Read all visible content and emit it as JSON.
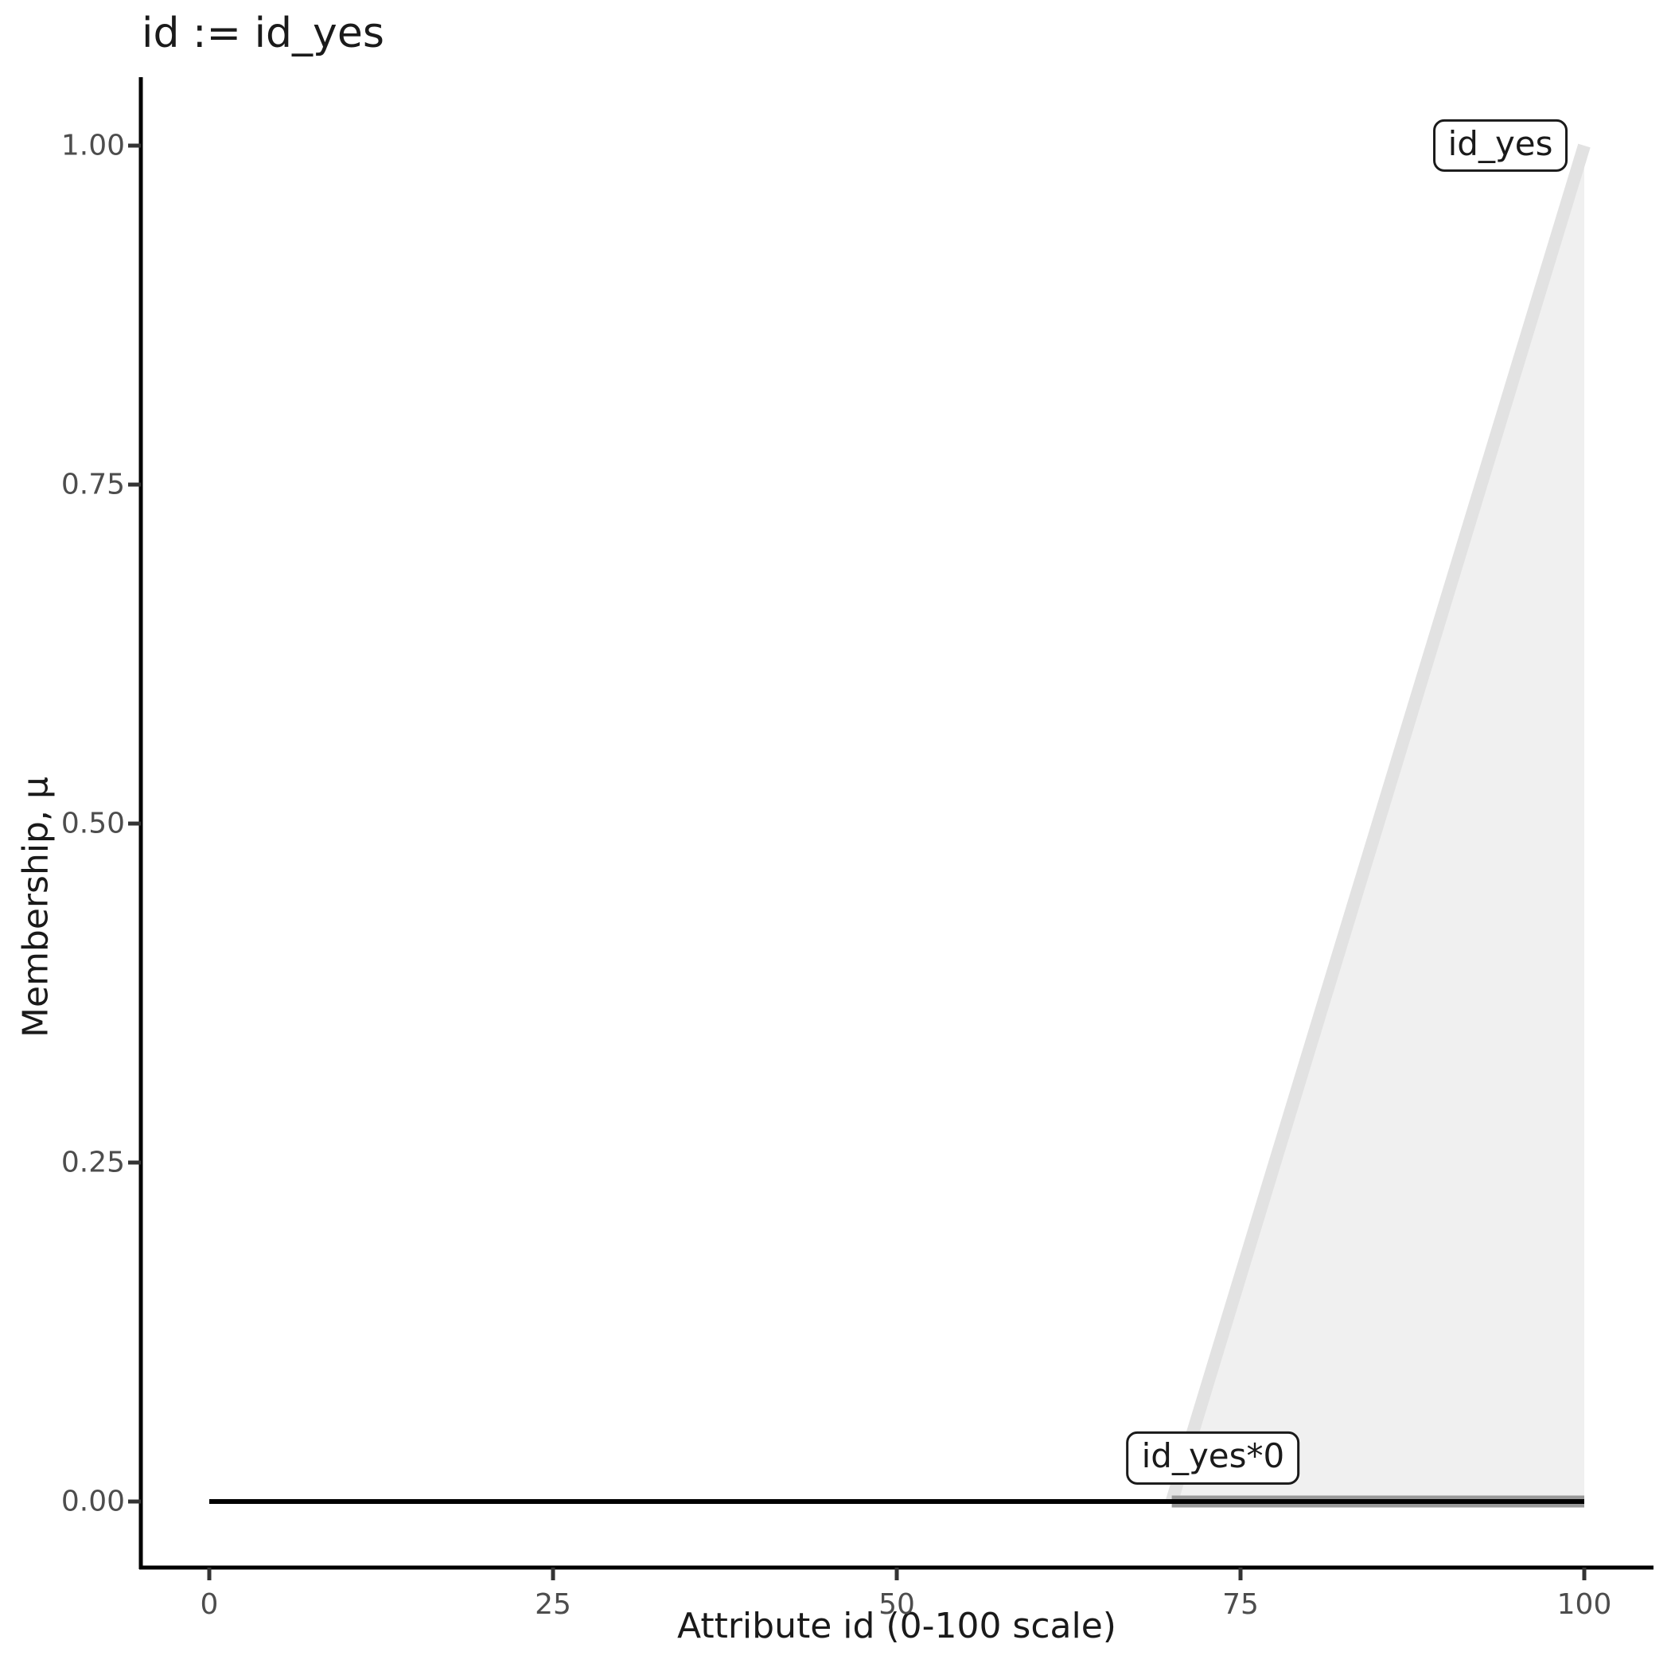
{
  "chart_data": {
    "type": "area",
    "title": "id := id_yes",
    "xlabel": "Attribute id (0-100 scale)",
    "ylabel": "Membership, μ",
    "xlim": [
      0,
      100
    ],
    "ylim": [
      0,
      1
    ],
    "grid": false,
    "legend": "none",
    "x_ticks": [
      0,
      25,
      50,
      75,
      100
    ],
    "x_tick_labels": [
      "0",
      "25",
      "50",
      "75",
      "100"
    ],
    "y_ticks": [
      0,
      0.25,
      0.5,
      0.75,
      1
    ],
    "y_tick_labels": [
      "0.00",
      "0.25",
      "0.50",
      "0.75",
      "1.00"
    ],
    "series": [
      {
        "name": "id_yes",
        "role": "membership-function",
        "points": [
          [
            70,
            0
          ],
          [
            100,
            1
          ]
        ],
        "color": "#e2e2e2",
        "width": 16,
        "area_points": [
          [
            70,
            0
          ],
          [
            100,
            1
          ],
          [
            100,
            0
          ]
        ],
        "area_fill": "#f0f0f0"
      },
      {
        "name": "id_yes*0",
        "role": "scaled-membership-function",
        "points": [
          [
            0,
            0
          ],
          [
            100,
            0
          ]
        ],
        "color": "#000000",
        "width": 6,
        "support_points": [
          [
            70,
            0
          ],
          [
            100,
            0
          ]
        ],
        "support_color": "#999999",
        "support_width": 15
      }
    ],
    "annotations": [
      {
        "label": "id_yes",
        "x": 93.9,
        "y": 1.0
      },
      {
        "label": "id_yes*0",
        "x": 73.0,
        "y": 0.032
      }
    ]
  },
  "style": {
    "axis_color": "#000000",
    "tick_color": "#333333",
    "tick_label_color": "#4d4d4d",
    "text_color": "#1a1a1a",
    "background": "#ffffff"
  }
}
